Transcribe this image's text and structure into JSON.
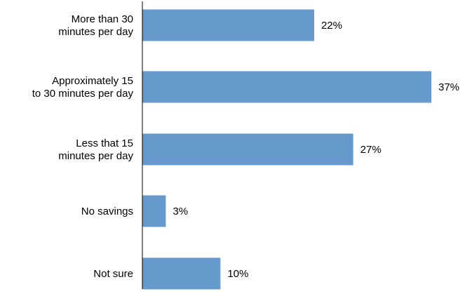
{
  "chart_data": {
    "type": "bar",
    "orientation": "horizontal",
    "categories": [
      [
        "More than 30",
        "minutes per day"
      ],
      [
        "Approximately 15",
        "to 30 minutes per day"
      ],
      [
        "Less that 15",
        "minutes per day"
      ],
      [
        "No savings"
      ],
      [
        "Not sure"
      ]
    ],
    "values": [
      22,
      37,
      27,
      3,
      10
    ],
    "value_labels": [
      "22%",
      "37%",
      "27%",
      "3%",
      "10%"
    ],
    "title": "",
    "xlabel": "",
    "ylabel": "",
    "xlim": [
      0,
      37
    ],
    "grid": false,
    "legend": "none",
    "bar_color": "#6699cc",
    "axis_color": "#000000"
  }
}
